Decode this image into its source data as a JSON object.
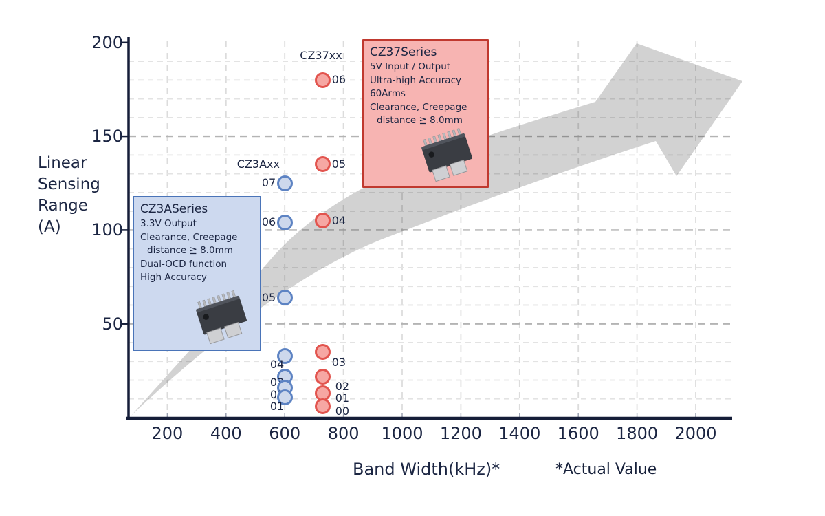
{
  "figure": {
    "y_axis_label_lines": [
      "Linear",
      "Sensing",
      "Range",
      "(A)"
    ],
    "x_axis_label": "Band Width(kHz)*",
    "x_axis_note": "*Actual Value"
  },
  "series_labels": {
    "cz3a": "CZ3Axx",
    "cz37": "CZ37xx"
  },
  "boxes": {
    "cz3a": {
      "title": "CZ3ASeries",
      "lines": [
        "3.3V Output",
        "Clearance, Creepage",
        "distance ≧ 8.0mm",
        "Dual-OCD function",
        "High Accuracy"
      ]
    },
    "cz37": {
      "title": "CZ37Series",
      "lines": [
        "5V Input / Output",
        "Ultra-high Accuracy",
        "60Arms",
        "Clearance, Creepage",
        "distance ≧ 8.0mm"
      ]
    }
  },
  "colors": {
    "text_navy": "#1b2542",
    "axis": "#151d38",
    "arrow_gray": "#d2d2d2",
    "grid_minor": "#e3e3e3",
    "grid_major": "#b4b4b4",
    "grid_vertical": "#dcdcdc",
    "blue_dot_fill": "#cdd8ec",
    "blue_dot_stroke": "#5d83c3",
    "red_dot_fill": "#f6a7a3",
    "red_dot_stroke": "#e2544e",
    "blue_box_fill": "#cdd9ef",
    "blue_box_border": "#4a74b8",
    "red_box_fill": "#f7b4b2",
    "red_box_border": "#c0392f"
  },
  "chart_data": {
    "type": "scatter",
    "title": "",
    "xlabel": "Band Width(kHz)*",
    "ylabel": "Linear Sensing Range (A)",
    "x_unit": "kHz",
    "y_unit": "A",
    "xlim": [
      65,
      2125
    ],
    "ylim": [
      0,
      202
    ],
    "x_ticks": [
      200,
      400,
      600,
      800,
      1000,
      1200,
      1400,
      1600,
      1800,
      2000
    ],
    "y_ticks": [
      50,
      100,
      150,
      200
    ],
    "grid": true,
    "legend_position": "none",
    "annotation": "*Actual Value",
    "series": [
      {
        "name": "CZ3Axx",
        "fill": "#cdd8ec",
        "stroke": "#5d83c3",
        "label_side": "left",
        "points": [
          {
            "label": "01",
            "x": 600,
            "y": 11,
            "ldx": 12,
            "ldy": 14
          },
          {
            "label": "02",
            "x": 600,
            "y": 16,
            "ldx": 12,
            "ldy": 11
          },
          {
            "label": "03",
            "x": 600,
            "y": 22,
            "ldx": 12,
            "ldy": 9
          },
          {
            "label": "04",
            "x": 600,
            "y": 33,
            "ldx": 12,
            "ldy": 13
          },
          {
            "label": "05",
            "x": 600,
            "y": 64
          },
          {
            "label": "06",
            "x": 600,
            "y": 104
          },
          {
            "label": "07",
            "x": 600,
            "y": 125
          }
        ]
      },
      {
        "name": "CZ37xx",
        "fill": "#f6a7a3",
        "stroke": "#e2544e",
        "label_side": "right",
        "points": [
          {
            "label": "00",
            "x": 730,
            "y": 6,
            "ldx": 5,
            "ldy": 7
          },
          {
            "label": "01",
            "x": 730,
            "y": 13,
            "ldx": 5,
            "ldy": 7
          },
          {
            "label": "02",
            "x": 730,
            "y": 22,
            "ldx": 5,
            "ldy": 15
          },
          {
            "label": "03",
            "x": 730,
            "y": 35,
            "ldy": 15
          },
          {
            "label": "04",
            "x": 730,
            "y": 105
          },
          {
            "label": "05",
            "x": 730,
            "y": 135
          },
          {
            "label": "06",
            "x": 730,
            "y": 180
          }
        ]
      }
    ]
  }
}
